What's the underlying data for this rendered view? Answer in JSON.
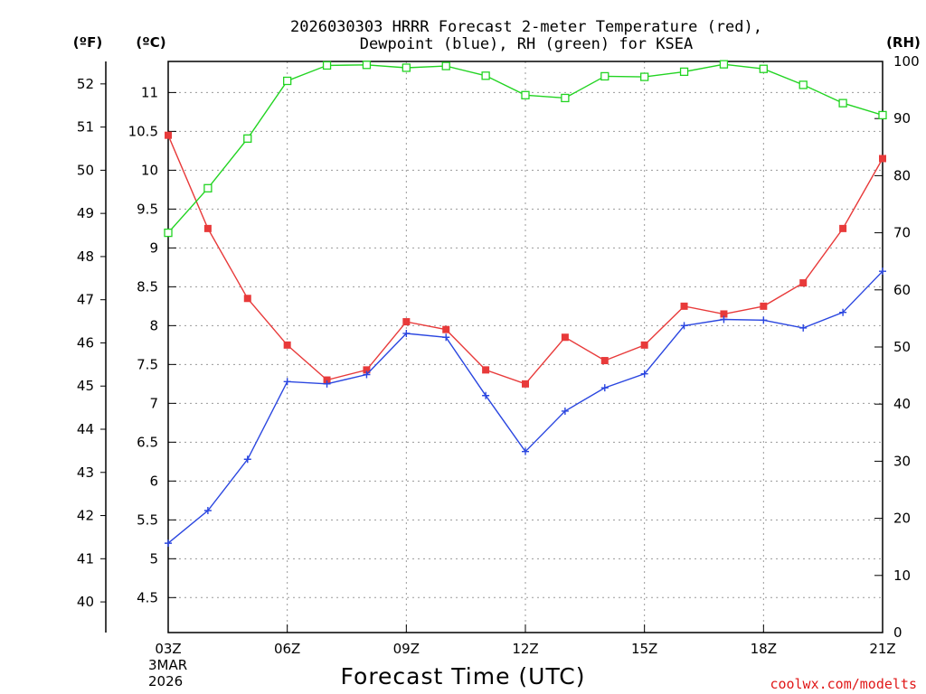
{
  "chart_data": {
    "type": "line",
    "title_line1": "2026030303 HRRR Forecast 2-meter Temperature (red),",
    "title_line2": "Dewpoint (blue), RH (green) for KSEA",
    "xlabel": "Forecast Time (UTC)",
    "date_line1": "3MAR",
    "date_line2": "2026",
    "credit": "coolwx.com/modelts",
    "credit_color": "#e01818",
    "unit_f": "(ºF)",
    "unit_c": "(ºC)",
    "unit_rh": "(RH)",
    "x_hours": [
      3,
      4,
      5,
      6,
      7,
      8,
      9,
      10,
      11,
      12,
      13,
      14,
      15,
      16,
      17,
      18,
      19,
      20,
      21
    ],
    "x_ticks": [
      {
        "hour": 3,
        "label": "03Z"
      },
      {
        "hour": 6,
        "label": "06Z"
      },
      {
        "hour": 9,
        "label": "09Z"
      },
      {
        "hour": 12,
        "label": "12Z"
      },
      {
        "hour": 15,
        "label": "15Z"
      },
      {
        "hour": 18,
        "label": "18Z"
      },
      {
        "hour": 21,
        "label": "21Z"
      }
    ],
    "xlim": [
      3,
      21
    ],
    "c_axis": {
      "lim": [
        4.05,
        11.4
      ],
      "ticks": [
        "4.5",
        "5",
        "5.5",
        "6",
        "6.5",
        "7",
        "7.5",
        "8",
        "8.5",
        "9",
        "9.5",
        "10",
        "10.5",
        "11"
      ]
    },
    "f_axis": {
      "lim": [
        39.29,
        52.52
      ],
      "ticks": [
        "40",
        "41",
        "42",
        "43",
        "44",
        "45",
        "46",
        "47",
        "48",
        "49",
        "50",
        "51",
        "52"
      ]
    },
    "rh_axis": {
      "lim": [
        0,
        100
      ],
      "ticks": [
        "0",
        "10",
        "20",
        "30",
        "40",
        "50",
        "60",
        "70",
        "80",
        "90",
        "100"
      ]
    },
    "grid": true,
    "series": [
      {
        "name": "Temperature",
        "axis": "c",
        "color": "#e83a3a",
        "marker": "filled-square",
        "values": [
          10.45,
          9.25,
          8.35,
          7.75,
          7.3,
          7.43,
          8.05,
          7.95,
          7.43,
          7.25,
          7.85,
          7.55,
          7.75,
          8.25,
          8.15,
          8.25,
          8.55,
          9.25,
          10.15
        ]
      },
      {
        "name": "Dewpoint",
        "axis": "c",
        "color": "#2a46e0",
        "marker": "plus",
        "values": [
          5.2,
          5.62,
          6.28,
          7.28,
          7.25,
          7.37,
          7.9,
          7.85,
          7.1,
          6.38,
          6.9,
          7.2,
          7.38,
          8.0,
          8.08,
          8.07,
          7.97,
          8.17,
          8.7
        ]
      },
      {
        "name": "RH",
        "axis": "rh",
        "color": "#22d422",
        "marker": "open-square",
        "values": [
          70.0,
          77.8,
          86.5,
          96.6,
          99.3,
          99.4,
          98.9,
          99.2,
          97.5,
          94.1,
          93.6,
          97.4,
          97.3,
          98.2,
          99.5,
          98.7,
          95.9,
          92.7,
          90.6
        ]
      }
    ]
  }
}
